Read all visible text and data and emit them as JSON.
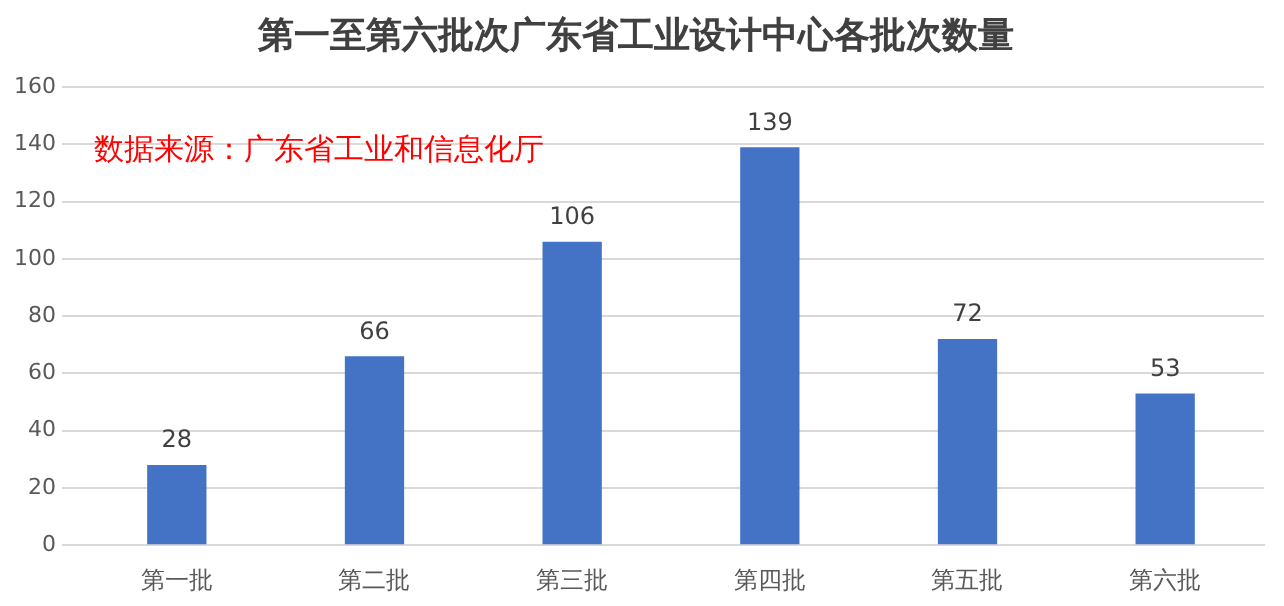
{
  "chart_data": {
    "type": "bar",
    "title": "第一至第六批次广东省工业设计中心各批次数量",
    "categories": [
      "第一批",
      "第二批",
      "第三批",
      "第四批",
      "第五批",
      "第六批"
    ],
    "values": [
      28,
      66,
      106,
      139,
      72,
      53
    ],
    "color": "#4472c4",
    "ylim": [
      0,
      160
    ],
    "yticks": [
      0,
      20,
      40,
      60,
      80,
      100,
      120,
      140,
      160
    ],
    "grid": "y",
    "data_labels": true,
    "annotations": [
      "数据来源：广东省工业和信息化厅"
    ]
  }
}
